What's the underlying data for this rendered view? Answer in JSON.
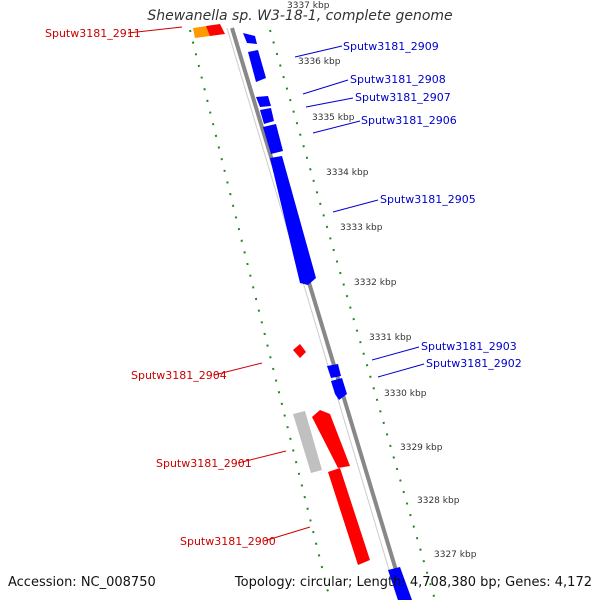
{
  "title": "Shewanella sp. W3-18-1, complete genome",
  "footer": {
    "accession": "Accession: NC_008750",
    "topology": "Topology: circular; Length: 4,708,380 bp; Genes: 4,172"
  },
  "colors": {
    "forward_gene": "#0000ff",
    "reverse_gene": "#ff0000",
    "orange_gene": "#ff9900",
    "gray_gene": "#c0c0c0",
    "backbone": "#888888",
    "tick": "#228822",
    "label_forward": "#0000cc",
    "label_reverse": "#cc0000"
  },
  "kbp_ticks": [
    "3337 kbp",
    "3336 kbp",
    "3335 kbp",
    "3334 kbp",
    "3333 kbp",
    "3332 kbp",
    "3331 kbp",
    "3330 kbp",
    "3329 kbp",
    "3328 kbp",
    "3327 kbp"
  ],
  "gene_labels": {
    "forward": [
      "Sputw3181_2909",
      "Sputw3181_2908",
      "Sputw3181_2907",
      "Sputw3181_2906",
      "Sputw3181_2905",
      "Sputw3181_2903",
      "Sputw3181_2902"
    ],
    "reverse": [
      "Sputw3181_2911",
      "Sputw3181_2904",
      "Sputw3181_2901",
      "Sputw3181_2900"
    ]
  }
}
